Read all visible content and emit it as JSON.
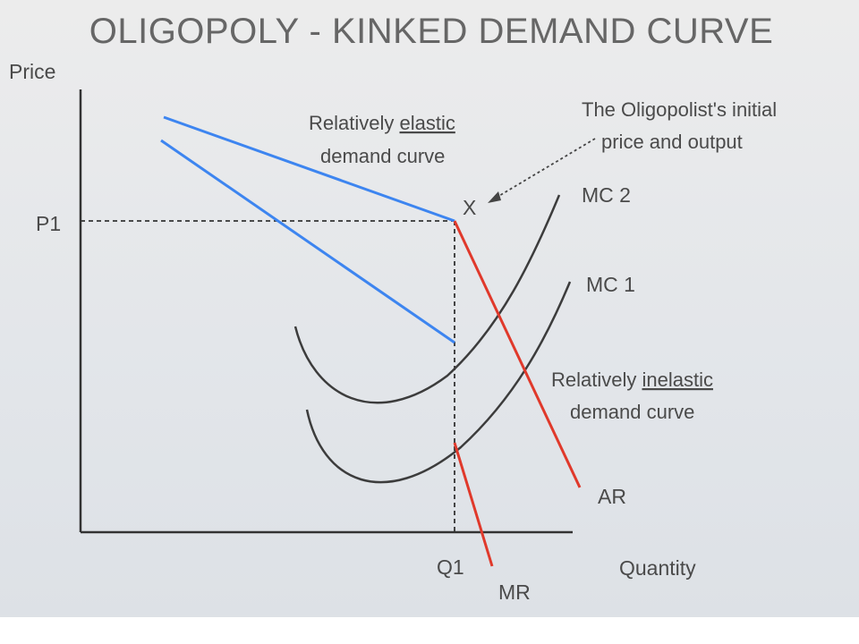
{
  "title": "OLIGOPOLY - KINKED DEMAND CURVE",
  "axes": {
    "y_label": "Price",
    "x_label": "Quantity",
    "price_tick": "P1",
    "quantity_tick": "Q1"
  },
  "curves": {
    "mc2_label": "MC 2",
    "mc1_label": "MC 1",
    "ar_label": "AR",
    "mr_label": "MR"
  },
  "annotations": {
    "elastic_prefix": "Relatively ",
    "elastic_word": "elastic",
    "elastic_line2": "demand curve",
    "inelastic_prefix": "Relatively ",
    "inelastic_word": "inelastic",
    "inelastic_line2": "demand curve",
    "initial_line1": "The Oligopolist's initial",
    "initial_line2": "price and output",
    "kink_marker": "X"
  },
  "colors": {
    "elastic_segment": "#3d85f0",
    "inelastic_segment": "#e0392b",
    "cost_curves": "#3c3c3c",
    "axis": "#333333"
  }
}
